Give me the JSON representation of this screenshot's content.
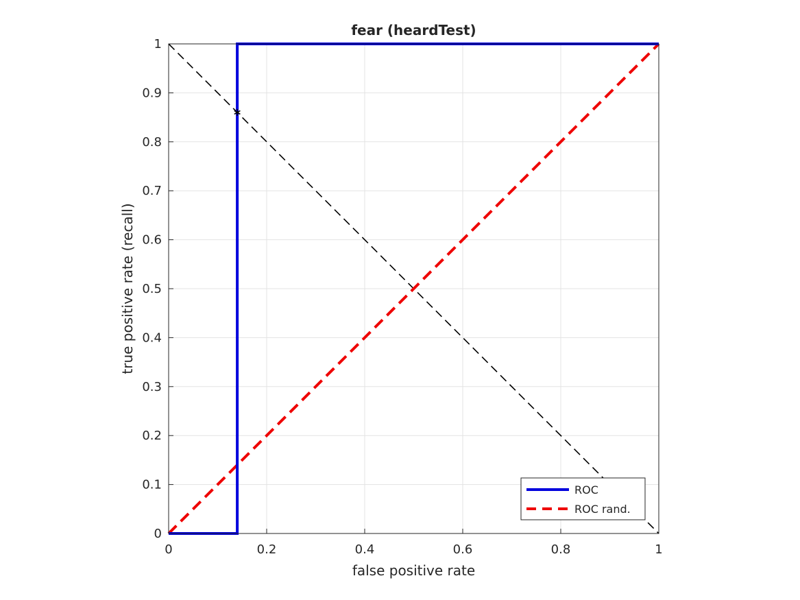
{
  "chart_data": {
    "type": "line",
    "title": "fear (heardTest)",
    "xlabel": "false positive rate",
    "ylabel": "true positive rate (recall)",
    "xlim": [
      0,
      1
    ],
    "ylim": [
      0,
      1
    ],
    "x_ticks": [
      "0",
      "0.2",
      "0.4",
      "0.6",
      "0.8",
      "1"
    ],
    "y_ticks": [
      "0",
      "0.1",
      "0.2",
      "0.3",
      "0.4",
      "0.5",
      "0.6",
      "0.7",
      "0.8",
      "0.9",
      "1"
    ],
    "grid": true,
    "legend_position": "bottom-right",
    "series": [
      {
        "name": "ROC",
        "color": "#0000dd",
        "style": "solid",
        "x": [
          0,
          0.14,
          0.14,
          0.14,
          1
        ],
        "y": [
          0,
          0,
          0.86,
          1,
          1
        ]
      },
      {
        "name": "ROC rand.",
        "color": "#ee0000",
        "style": "dashed",
        "x": [
          0,
          1
        ],
        "y": [
          0,
          1
        ]
      }
    ],
    "reference_line": {
      "color": "#000000",
      "style": "dashed",
      "x": [
        0,
        1
      ],
      "y": [
        1,
        0
      ]
    },
    "marker": {
      "symbol": "asterisk",
      "x": 0.14,
      "y": 0.86
    }
  }
}
